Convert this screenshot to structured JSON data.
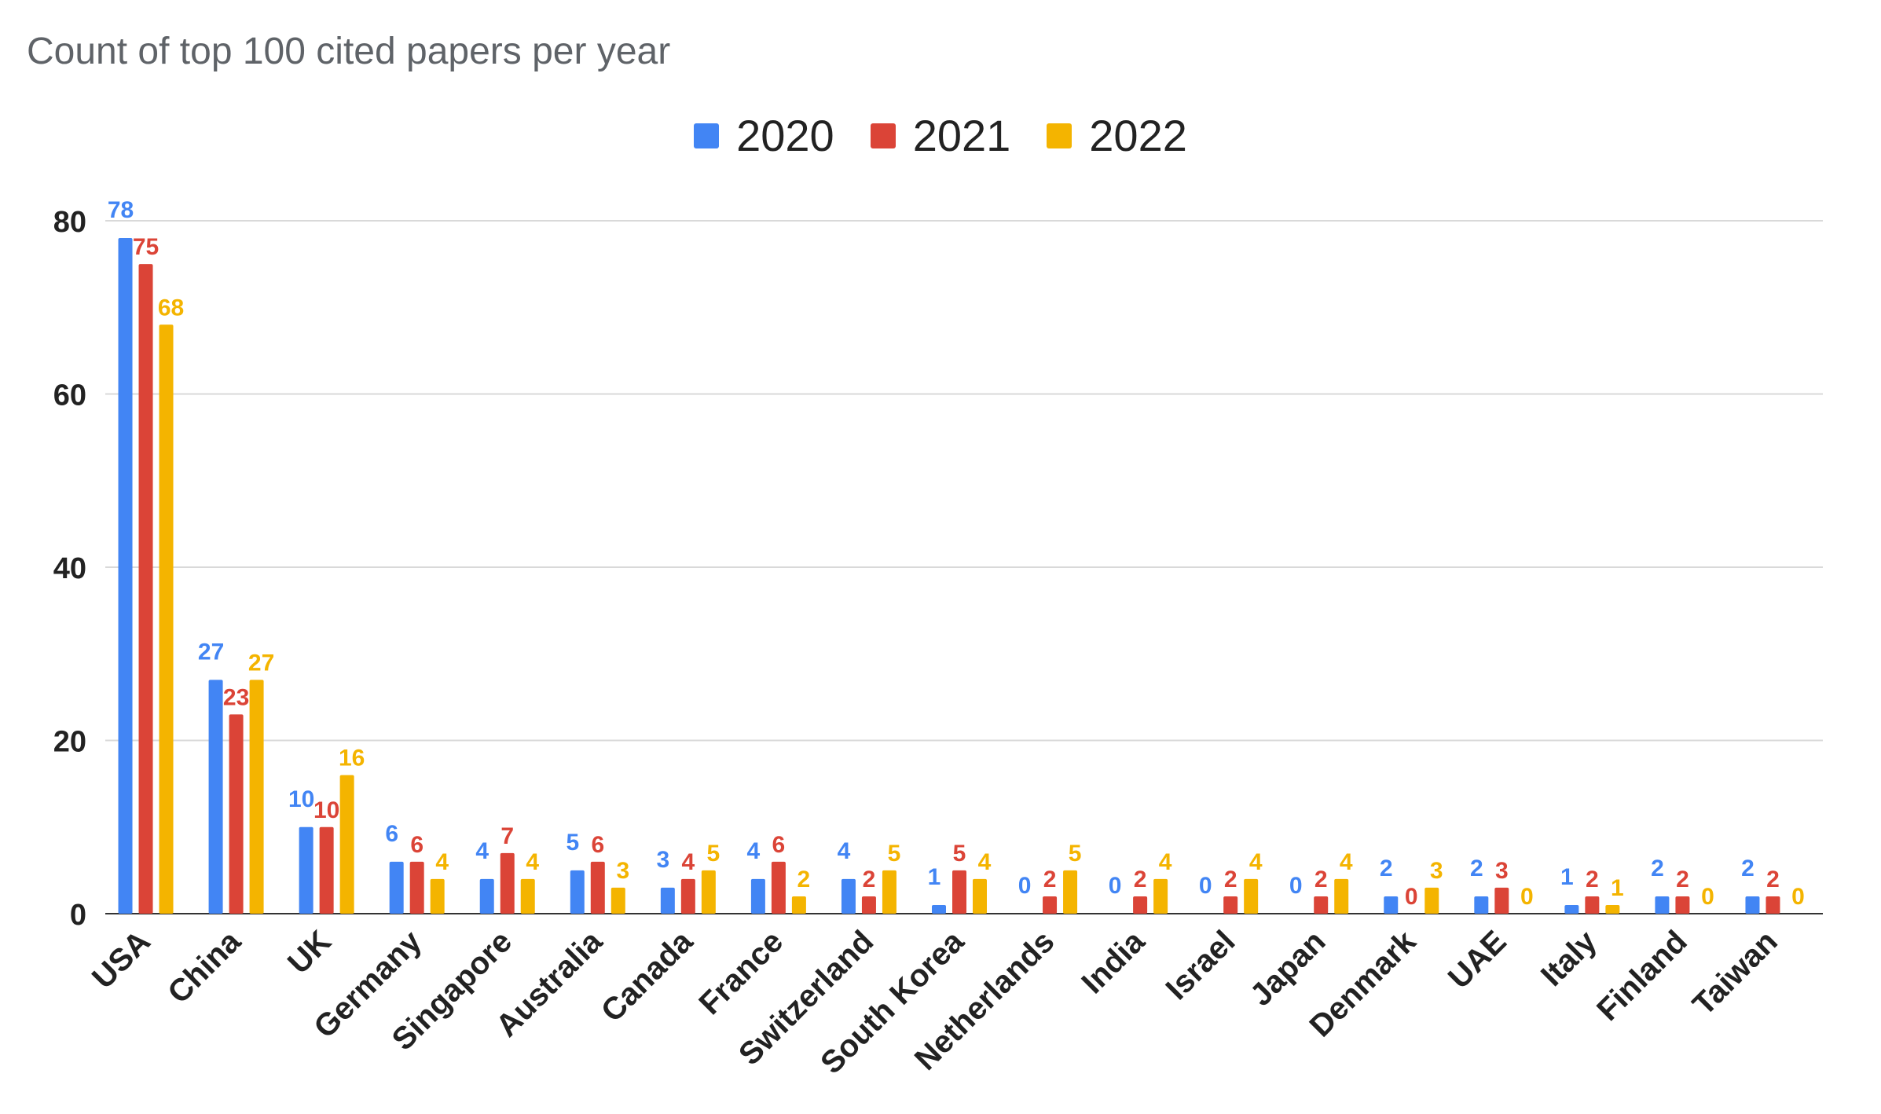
{
  "chart_data": {
    "type": "bar",
    "title": "Count of top 100 cited papers per year",
    "xlabel": "",
    "ylabel": "",
    "ylim": [
      0,
      80
    ],
    "yticks": [
      0,
      20,
      40,
      60,
      80
    ],
    "grid": true,
    "legend_position": "top-center",
    "categories": [
      "USA",
      "China",
      "UK",
      "Germany",
      "Singapore",
      "Australia",
      "Canada",
      "France",
      "Switzerland",
      "South Korea",
      "Netherlands",
      "India",
      "Israel",
      "Japan",
      "Denmark",
      "UAE",
      "Italy",
      "Finland",
      "Taiwan"
    ],
    "series": [
      {
        "name": "2020",
        "color": "#4285F4",
        "values": [
          78,
          27,
          10,
          6,
          4,
          5,
          3,
          4,
          4,
          1,
          0,
          0,
          0,
          0,
          2,
          2,
          1,
          2,
          2
        ]
      },
      {
        "name": "2021",
        "color": "#DB4437",
        "values": [
          75,
          23,
          10,
          6,
          7,
          6,
          4,
          6,
          2,
          5,
          2,
          2,
          2,
          2,
          0,
          3,
          2,
          2,
          2
        ]
      },
      {
        "name": "2022",
        "color": "#F4B400",
        "values": [
          68,
          27,
          16,
          4,
          4,
          3,
          5,
          2,
          5,
          4,
          5,
          4,
          4,
          4,
          3,
          0,
          1,
          0,
          0
        ]
      }
    ]
  }
}
